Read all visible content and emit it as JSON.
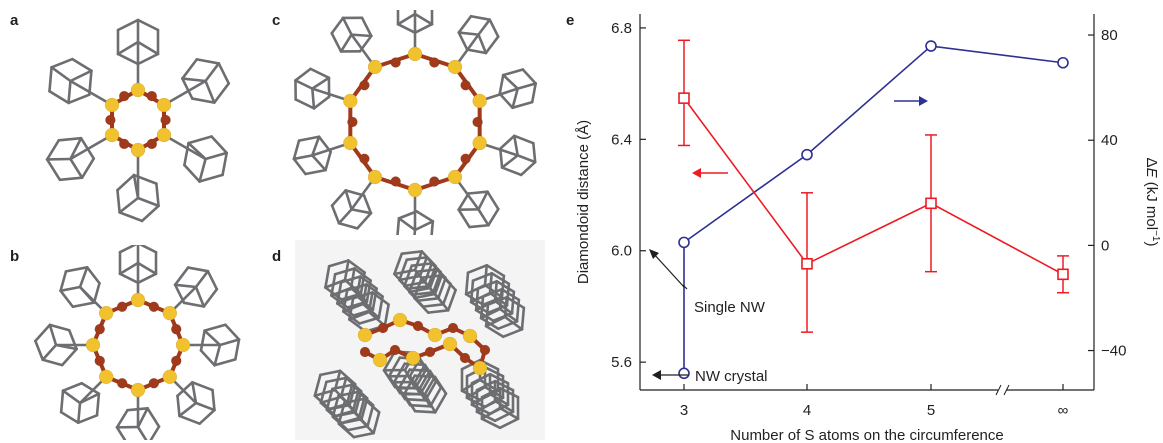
{
  "panels": {
    "a": "a",
    "b": "b",
    "c": "c",
    "d": "d",
    "e": "e"
  },
  "chart_data": {
    "type": "line",
    "x_categories": [
      "3",
      "4",
      "5",
      "∞"
    ],
    "xlabel": "Number of S atoms on the circumference",
    "ylabel_left": "Diamondoid distance (Å)",
    "ylabel_right_prefix": "Δ",
    "ylabel_right_var": "E",
    "ylabel_right_unit": " (kJ mol",
    "ylabel_right_exp": "−1",
    "ylabel_right_close": ")",
    "ylim_left": [
      5.5,
      6.85
    ],
    "ylim_right": [
      -55,
      88
    ],
    "yticks_left": [
      "5.6",
      "6.0",
      "6.4",
      "6.8"
    ],
    "yticks_right": [
      "−40",
      "0",
      "40",
      "80"
    ],
    "series": [
      {
        "axis": "left",
        "color": "#2e3192",
        "marker": "circle",
        "points": [
          {
            "x": "3",
            "y": 5.56
          },
          {
            "x": "3",
            "y": 6.03
          },
          {
            "x": "4",
            "y": 6.345
          },
          {
            "x": "5",
            "y": 6.735
          },
          {
            "x": "∞",
            "y": 6.675
          }
        ]
      },
      {
        "axis": "right",
        "color": "#ed1c24",
        "marker": "square",
        "points": [
          {
            "x": "3",
            "y": 56,
            "err_low": 38,
            "err_high": 78
          },
          {
            "x": "4",
            "y": -7,
            "err_low": -33,
            "err_high": 20
          },
          {
            "x": "5",
            "y": 16,
            "err_low": -10,
            "err_high": 42
          },
          {
            "x": "∞",
            "y": -11,
            "err_low": -18,
            "err_high": -4
          }
        ]
      }
    ],
    "annotations": {
      "single_nw": "Single NW",
      "nw_crystal": "NW crystal"
    },
    "axis_break": true
  },
  "colors": {
    "sulfur": "#f2c22e",
    "copper": "#a13a1b",
    "carbon": "#6d6e71"
  }
}
